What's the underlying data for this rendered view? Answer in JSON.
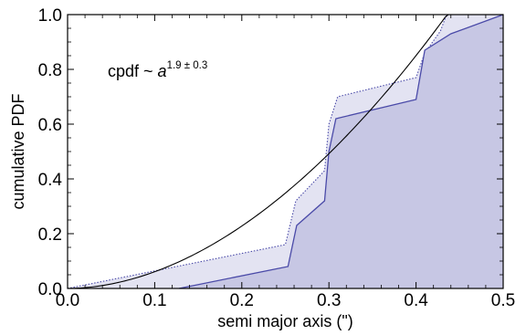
{
  "chart_data": {
    "type": "area",
    "title": "",
    "xlabel": "semi major axis (\")",
    "ylabel": "cumulative PDF",
    "xlim": [
      0.0,
      0.5
    ],
    "ylim": [
      0.0,
      1.0
    ],
    "xticks": [
      "0.0",
      "0.1",
      "0.2",
      "0.3",
      "0.4",
      "0.5"
    ],
    "yticks": [
      "0.0",
      "0.2",
      "0.4",
      "0.6",
      "0.8",
      "1.0"
    ],
    "grid": false,
    "annotation": {
      "prefix": "cpdf ~ ",
      "base": "a",
      "exponent": "1.9 ± 0.3"
    },
    "series": [
      {
        "role": "upper-dotted-band",
        "fill": "#e3e3f2",
        "stroke": "#4a4aa8",
        "x": [
          0.0,
          0.25,
          0.262,
          0.295,
          0.3,
          0.31,
          0.4,
          0.41,
          0.428,
          0.435,
          0.5
        ],
        "y": [
          0.0,
          0.16,
          0.32,
          0.43,
          0.6,
          0.7,
          0.77,
          0.86,
          0.94,
          1.0,
          1.0
        ]
      },
      {
        "role": "lower-solid-band",
        "fill": "#c7c7e4",
        "stroke": "#4a4aa8",
        "x": [
          0.128,
          0.253,
          0.263,
          0.295,
          0.3,
          0.308,
          0.4,
          0.41,
          0.44,
          0.5
        ],
        "y": [
          0.0,
          0.08,
          0.23,
          0.32,
          0.5,
          0.62,
          0.69,
          0.87,
          0.93,
          1.0
        ]
      },
      {
        "role": "power-law-fit",
        "stroke": "#000000",
        "exponent": 1.9,
        "coefficient": 4.85,
        "x_end": 0.437
      }
    ]
  }
}
